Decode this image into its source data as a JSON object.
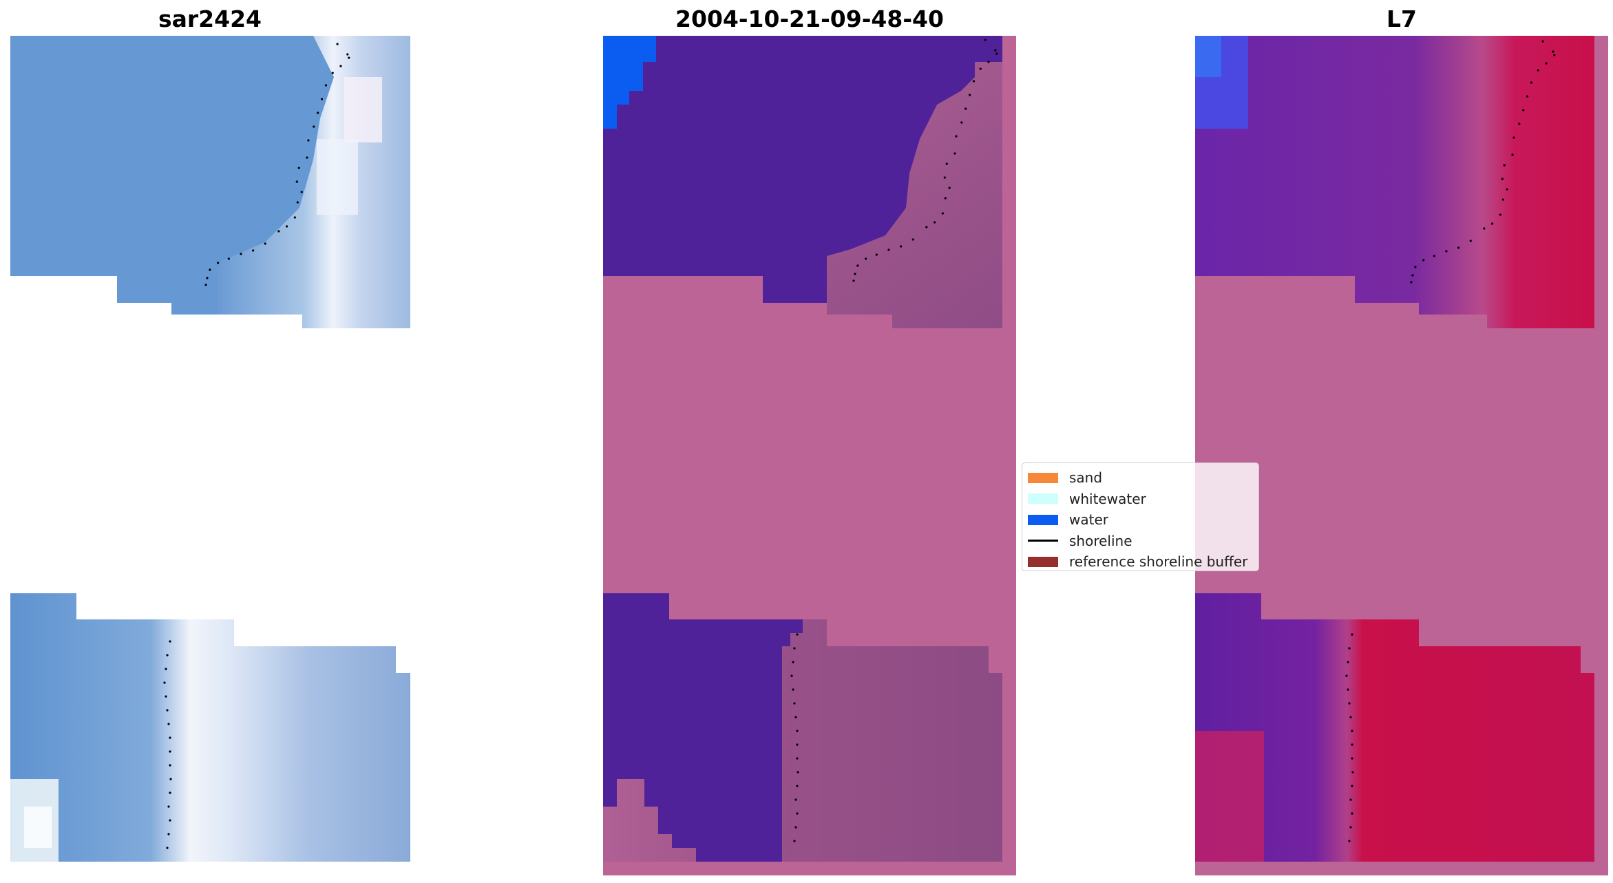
{
  "titles": {
    "left": "sar2424",
    "middle": "2004-10-21-09-48-40",
    "right": "L7"
  },
  "legend": {
    "items": [
      {
        "label": "sand",
        "color": "#f7883a",
        "kind": "patch"
      },
      {
        "label": "whitewater",
        "color": "#cdfffc",
        "kind": "patch"
      },
      {
        "label": "water",
        "color": "#0b5cf0",
        "kind": "patch"
      },
      {
        "label": "shoreline",
        "color": "#000000",
        "kind": "line"
      },
      {
        "label": "reference shoreline buffer",
        "color": "#962e2e",
        "kind": "patch"
      }
    ]
  },
  "colors": {
    "rgb_water": "#6496d2",
    "rgb_whitewater": "#e6ecf8",
    "buffer_overlay": "#bd6496",
    "class_water": "#50229a",
    "class_water_bright": "#0b5cf0",
    "class_land": "#a85a92",
    "ndwi_low": "#7a2aa8",
    "ndwi_high": "#c8104a"
  }
}
